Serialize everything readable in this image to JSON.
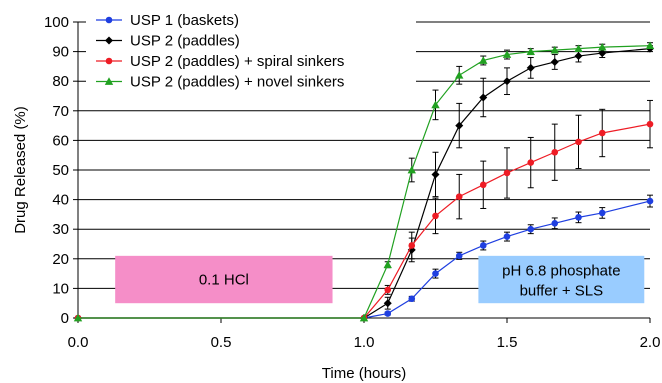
{
  "chart_data": {
    "type": "line",
    "xlabel": "Time (hours)",
    "ylabel": "Drug Released (%)",
    "xlim": [
      0,
      2
    ],
    "ylim": [
      0,
      100
    ],
    "x_ticks": [
      "0.0",
      "0.5",
      "1.0",
      "1.5",
      "2.0"
    ],
    "y_ticks": [
      "0",
      "10",
      "20",
      "30",
      "40",
      "50",
      "60",
      "70",
      "80",
      "90",
      "100"
    ],
    "grid": "horizontal",
    "legend_position": "top-left",
    "series": [
      {
        "name": "USP 1 (baskets)",
        "color": "#1f3fe0",
        "marker": "circle",
        "x": [
          0,
          1.0,
          1.083,
          1.167,
          1.25,
          1.333,
          1.417,
          1.5,
          1.583,
          1.667,
          1.75,
          1.833,
          2.0
        ],
        "y": [
          0,
          0,
          1.5,
          6.5,
          15,
          21,
          24.5,
          27.5,
          30,
          32,
          34,
          35.5,
          39.5
        ],
        "err": [
          0,
          0,
          0.5,
          0.8,
          1.5,
          1.2,
          1.5,
          1.5,
          1.5,
          1.8,
          1.8,
          1.8,
          2.0
        ]
      },
      {
        "name": "USP 2 (paddles)",
        "color": "#000000",
        "marker": "diamond",
        "x": [
          0,
          1.0,
          1.083,
          1.167,
          1.25,
          1.333,
          1.417,
          1.5,
          1.583,
          1.667,
          1.75,
          1.833,
          2.0
        ],
        "y": [
          0,
          0,
          5,
          23,
          48.5,
          65,
          74.5,
          80,
          84.5,
          86.5,
          88.5,
          89.5,
          91
        ],
        "err": [
          0,
          0,
          2,
          4,
          7.5,
          7.5,
          6.5,
          4.5,
          3.5,
          2.5,
          2.0,
          1.5,
          1.0
        ]
      },
      {
        "name": "USP 2 (paddles) + spiral sinkers",
        "color": "#ee1c25",
        "marker": "circle",
        "x": [
          0,
          1.0,
          1.083,
          1.167,
          1.25,
          1.333,
          1.417,
          1.5,
          1.583,
          1.667,
          1.75,
          1.833,
          2.0
        ],
        "y": [
          0,
          0,
          9.5,
          24.5,
          34.5,
          41,
          45,
          49,
          52.5,
          56,
          59.5,
          62.5,
          65.5
        ],
        "err": [
          0,
          0,
          1.5,
          4.5,
          6,
          7.5,
          8,
          8.5,
          8.5,
          9.5,
          9,
          8,
          8
        ]
      },
      {
        "name": "USP 2 (paddles) + novel sinkers",
        "color": "#21a121",
        "marker": "triangle",
        "x": [
          0,
          1.0,
          1.083,
          1.167,
          1.25,
          1.333,
          1.417,
          1.5,
          1.583,
          1.667,
          1.75,
          1.833,
          2.0
        ],
        "y": [
          0,
          0,
          18,
          50,
          72,
          82,
          87,
          89,
          90,
          90.5,
          91,
          91.5,
          92
        ],
        "err": [
          0,
          0,
          1,
          4,
          5,
          3,
          1.5,
          1.5,
          1,
          1,
          1,
          1,
          1
        ]
      }
    ],
    "annotations": [
      {
        "text": "0.1 HCl",
        "color": "#f58ec8",
        "x0": 0.13,
        "x1": 0.89,
        "y0": 5,
        "y1": 21
      },
      {
        "lines": [
          "pH 6.8 phosphate",
          "buffer + SLS"
        ],
        "color": "#99ccff",
        "x0": 1.4,
        "x1": 1.98,
        "y0": 5,
        "y1": 21
      }
    ]
  }
}
